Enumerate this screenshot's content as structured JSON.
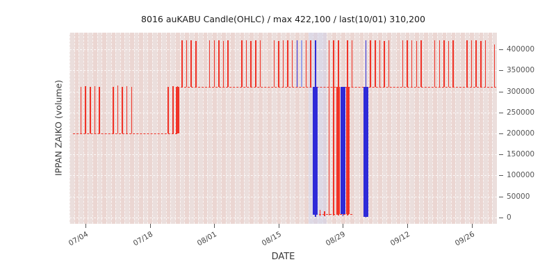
{
  "chart_data": {
    "type": "candlestick",
    "title": "8016 auKABU Candle(OHLC) / max 422,100 / last(10/01) 310,200",
    "xlabel": "DATE",
    "ylabel": "IPPAN ZAIKO (volume)",
    "ylim": [
      -15000,
      440000
    ],
    "days_total": 93,
    "grid": true,
    "legend": "none",
    "yticks": [
      0,
      50000,
      100000,
      150000,
      200000,
      250000,
      300000,
      350000,
      400000
    ],
    "xticks": [
      {
        "label": "07/04",
        "day": 3
      },
      {
        "label": "07/18",
        "day": 17
      },
      {
        "label": "08/01",
        "day": 31
      },
      {
        "label": "08/15",
        "day": 45
      },
      {
        "label": "08/29",
        "day": 59
      },
      {
        "label": "09/12",
        "day": 73
      },
      {
        "label": "09/26",
        "day": 87
      }
    ],
    "baselines": [
      {
        "value": 200000,
        "from_day": 0.8,
        "to_day": 23.5
      },
      {
        "value": 310200,
        "from_day": 23.5,
        "to_day": 92.9
      },
      {
        "value": 8000,
        "from_day": 53.6,
        "to_day": 61.5
      }
    ],
    "shade_bands": [
      {
        "from_day": 52.0,
        "to_day": 56.0,
        "color": "rgba(205,210,240,0.45)"
      }
    ],
    "candles": [
      {
        "date": "07/03",
        "day": 2,
        "open": 200000,
        "close": 200000,
        "low": 200000,
        "high": 311400,
        "color": "red"
      },
      {
        "date": "07/04",
        "day": 3,
        "open": 200000,
        "close": 200000,
        "low": 200000,
        "high": 313000,
        "color": "red"
      },
      {
        "date": "07/05",
        "day": 4,
        "open": 200000,
        "close": 200000,
        "low": 200000,
        "high": 311400,
        "color": "red"
      },
      {
        "date": "07/06",
        "day": 5,
        "open": 200000,
        "close": 200000,
        "low": 200000,
        "high": 312200,
        "color": "red"
      },
      {
        "date": "07/07",
        "day": 6,
        "open": 200000,
        "close": 200000,
        "low": 200000,
        "high": 311400,
        "color": "red"
      },
      {
        "date": "07/10",
        "day": 9,
        "open": 200000,
        "close": 200000,
        "low": 200000,
        "high": 311400,
        "color": "red"
      },
      {
        "date": "07/11",
        "day": 10,
        "open": 200000,
        "close": 200000,
        "low": 200000,
        "high": 313500,
        "color": "red"
      },
      {
        "date": "07/12",
        "day": 11,
        "open": 200000,
        "close": 200000,
        "low": 200000,
        "high": 311400,
        "color": "red"
      },
      {
        "date": "07/13",
        "day": 12,
        "open": 200000,
        "close": 200000,
        "low": 200000,
        "high": 312000,
        "color": "red"
      },
      {
        "date": "07/14",
        "day": 13,
        "open": 200000,
        "close": 200000,
        "low": 200000,
        "high": 311400,
        "color": "red"
      },
      {
        "date": "07/22",
        "day": 21,
        "open": 200000,
        "close": 200000,
        "low": 200000,
        "high": 311400,
        "color": "red"
      },
      {
        "date": "07/23",
        "day": 22,
        "open": 200000,
        "close": 200000,
        "low": 200000,
        "high": 312000,
        "color": "red"
      },
      {
        "date": "07/24",
        "day": 23,
        "open": 200000,
        "close": 310200,
        "low": 200000,
        "high": 312000,
        "color": "red"
      },
      {
        "date": "07/25",
        "day": 24,
        "open": 310200,
        "close": 310200,
        "low": 310200,
        "high": 422100,
        "color": "red"
      },
      {
        "date": "07/26",
        "day": 25,
        "open": 310200,
        "close": 310200,
        "low": 310200,
        "high": 421000,
        "color": "red"
      },
      {
        "date": "07/27",
        "day": 26,
        "open": 310200,
        "close": 310200,
        "low": 310200,
        "high": 422100,
        "color": "red"
      },
      {
        "date": "07/28",
        "day": 27,
        "open": 310200,
        "close": 310200,
        "low": 310200,
        "high": 420500,
        "color": "red"
      },
      {
        "date": "07/31",
        "day": 30,
        "open": 310200,
        "close": 310200,
        "low": 310200,
        "high": 422100,
        "color": "red"
      },
      {
        "date": "08/01",
        "day": 31,
        "open": 310200,
        "close": 310200,
        "low": 310200,
        "high": 421000,
        "color": "red"
      },
      {
        "date": "08/02",
        "day": 32,
        "open": 310200,
        "close": 310200,
        "low": 310200,
        "high": 422100,
        "color": "red"
      },
      {
        "date": "08/03",
        "day": 33,
        "open": 310200,
        "close": 310200,
        "low": 310200,
        "high": 420000,
        "color": "red"
      },
      {
        "date": "08/04",
        "day": 34,
        "open": 310200,
        "close": 310200,
        "low": 310200,
        "high": 422100,
        "color": "red"
      },
      {
        "date": "08/07",
        "day": 37,
        "open": 310200,
        "close": 310200,
        "low": 310200,
        "high": 421500,
        "color": "red"
      },
      {
        "date": "08/08",
        "day": 38,
        "open": 310200,
        "close": 310200,
        "low": 310200,
        "high": 422100,
        "color": "red"
      },
      {
        "date": "08/09",
        "day": 39,
        "open": 310200,
        "close": 310200,
        "low": 310200,
        "high": 420000,
        "color": "red"
      },
      {
        "date": "08/10",
        "day": 40,
        "open": 310200,
        "close": 310200,
        "low": 310200,
        "high": 422100,
        "color": "red"
      },
      {
        "date": "08/11",
        "day": 41,
        "open": 310200,
        "close": 310200,
        "low": 310200,
        "high": 421000,
        "color": "red"
      },
      {
        "date": "08/14",
        "day": 44,
        "open": 310200,
        "close": 310200,
        "low": 310200,
        "high": 422100,
        "color": "red"
      },
      {
        "date": "08/15",
        "day": 45,
        "open": 310200,
        "close": 310200,
        "low": 310200,
        "high": 420500,
        "color": "red"
      },
      {
        "date": "08/16",
        "day": 46,
        "open": 310200,
        "close": 310200,
        "low": 310200,
        "high": 422100,
        "color": "red"
      },
      {
        "date": "08/17",
        "day": 47,
        "open": 310200,
        "close": 310200,
        "low": 310200,
        "high": 421000,
        "color": "red"
      },
      {
        "date": "08/18",
        "day": 48,
        "open": 310200,
        "close": 310200,
        "low": 310200,
        "high": 422100,
        "color": "red"
      },
      {
        "date": "08/19",
        "day": 49,
        "open": 310200,
        "close": 310200,
        "low": 310200,
        "high": 422100,
        "color": "blue"
      },
      {
        "date": "08/20",
        "day": 50,
        "open": 310200,
        "close": 310200,
        "low": 310200,
        "high": 422100,
        "color": "lightblue"
      },
      {
        "date": "08/21",
        "day": 51,
        "open": 310200,
        "close": 310200,
        "low": 310200,
        "high": 422100,
        "color": "red"
      },
      {
        "date": "08/22",
        "day": 52,
        "open": 310200,
        "close": 310200,
        "low": 310200,
        "high": 421000,
        "color": "red"
      },
      {
        "date": "08/23",
        "day": 53,
        "open": 310200,
        "close": 6000,
        "low": 2000,
        "high": 422100,
        "color": "blue",
        "wide": true
      },
      {
        "date": "08/24",
        "day": 54,
        "open": 8000,
        "close": 9000,
        "low": 4000,
        "high": 18000,
        "color": "red"
      },
      {
        "date": "08/25",
        "day": 55,
        "open": 8000,
        "close": 8000,
        "low": 3000,
        "high": 15000,
        "color": "red"
      },
      {
        "date": "08/26",
        "day": 56,
        "open": 8000,
        "close": 8000,
        "low": 5000,
        "high": 422100,
        "color": "red"
      },
      {
        "date": "08/27",
        "day": 57,
        "open": 8000,
        "close": 8000,
        "low": 5000,
        "high": 422100,
        "color": "red"
      },
      {
        "date": "08/28",
        "day": 58,
        "open": 8000,
        "close": 310200,
        "low": 5000,
        "high": 422100,
        "color": "red"
      },
      {
        "date": "08/29",
        "day": 59,
        "open": 310200,
        "close": 8000,
        "low": 4000,
        "high": 310200,
        "color": "blue",
        "wide": true
      },
      {
        "date": "08/30",
        "day": 60,
        "open": 8000,
        "close": 310200,
        "low": 5000,
        "high": 422100,
        "color": "red"
      },
      {
        "date": "08/31",
        "day": 61,
        "open": 310200,
        "close": 310200,
        "low": 310200,
        "high": 422100,
        "color": "red"
      },
      {
        "date": "09/03",
        "day": 64,
        "open": 310200,
        "close": 2000,
        "low": 0,
        "high": 422100,
        "color": "blue",
        "wide": true
      },
      {
        "date": "09/04",
        "day": 65,
        "open": 310200,
        "close": 310200,
        "low": 310200,
        "high": 422100,
        "color": "red"
      },
      {
        "date": "09/05",
        "day": 66,
        "open": 310200,
        "close": 310200,
        "low": 310200,
        "high": 421000,
        "color": "red"
      },
      {
        "date": "09/06",
        "day": 67,
        "open": 310200,
        "close": 310200,
        "low": 310200,
        "high": 422100,
        "color": "red"
      },
      {
        "date": "09/07",
        "day": 68,
        "open": 310200,
        "close": 310200,
        "low": 310200,
        "high": 420000,
        "color": "red"
      },
      {
        "date": "09/08",
        "day": 69,
        "open": 310200,
        "close": 310200,
        "low": 310200,
        "high": 422100,
        "color": "red"
      },
      {
        "date": "09/11",
        "day": 72,
        "open": 310200,
        "close": 310200,
        "low": 310200,
        "high": 422100,
        "color": "red"
      },
      {
        "date": "09/12",
        "day": 73,
        "open": 310200,
        "close": 310200,
        "low": 310200,
        "high": 421000,
        "color": "red"
      },
      {
        "date": "09/13",
        "day": 74,
        "open": 310200,
        "close": 310200,
        "low": 310200,
        "high": 422100,
        "color": "red"
      },
      {
        "date": "09/14",
        "day": 75,
        "open": 310200,
        "close": 310200,
        "low": 310200,
        "high": 420500,
        "color": "red"
      },
      {
        "date": "09/15",
        "day": 76,
        "open": 310200,
        "close": 310200,
        "low": 310200,
        "high": 422100,
        "color": "red"
      },
      {
        "date": "09/18",
        "day": 79,
        "open": 310200,
        "close": 310200,
        "low": 310200,
        "high": 422100,
        "color": "red"
      },
      {
        "date": "09/19",
        "day": 80,
        "open": 310200,
        "close": 310200,
        "low": 310200,
        "high": 421000,
        "color": "red"
      },
      {
        "date": "09/20",
        "day": 81,
        "open": 310200,
        "close": 310200,
        "low": 310200,
        "high": 422100,
        "color": "red"
      },
      {
        "date": "09/21",
        "day": 82,
        "open": 310200,
        "close": 310200,
        "low": 310200,
        "high": 420000,
        "color": "red"
      },
      {
        "date": "09/22",
        "day": 83,
        "open": 310200,
        "close": 310200,
        "low": 310200,
        "high": 422100,
        "color": "red"
      },
      {
        "date": "09/25",
        "day": 86,
        "open": 310200,
        "close": 310200,
        "low": 310200,
        "high": 422100,
        "color": "red"
      },
      {
        "date": "09/26",
        "day": 87,
        "open": 310200,
        "close": 310200,
        "low": 310200,
        "high": 421000,
        "color": "red"
      },
      {
        "date": "09/27",
        "day": 88,
        "open": 310200,
        "close": 310200,
        "low": 310200,
        "high": 422100,
        "color": "red"
      },
      {
        "date": "09/28",
        "day": 89,
        "open": 310200,
        "close": 310200,
        "low": 310200,
        "high": 420500,
        "color": "red"
      },
      {
        "date": "09/29",
        "day": 90,
        "open": 310200,
        "close": 310200,
        "low": 310200,
        "high": 422100,
        "color": "red"
      },
      {
        "date": "10/01",
        "day": 92,
        "open": 310200,
        "close": 310200,
        "low": 310200,
        "high": 412000,
        "color": "red"
      }
    ]
  },
  "colors": {
    "red": "#f03328",
    "blue": "#2f2ad8",
    "lightblue": "#9aa3ea",
    "baseline": "#f03328",
    "plot_bg": "#edeae8",
    "band_a": "rgba(225,110,100,0.16)",
    "band_b": "rgba(225,110,100,0.09)",
    "grid": "rgba(255,255,255,0.85)",
    "tick": "#555555"
  }
}
